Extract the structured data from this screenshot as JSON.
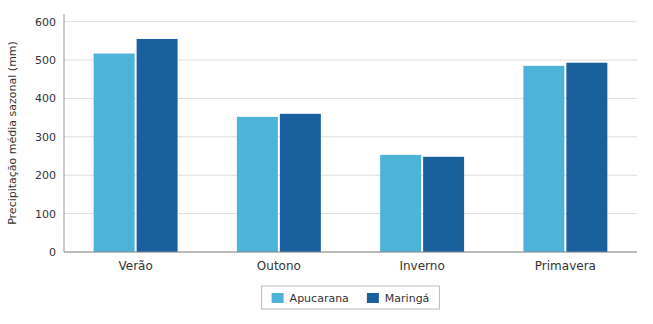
{
  "chart_data": {
    "type": "bar",
    "categories": [
      "Verão",
      "Outono",
      "Inverno",
      "Primavera"
    ],
    "series": [
      {
        "name": "Apucarana",
        "color": "#4db3d9",
        "values": [
          517,
          352,
          253,
          485
        ]
      },
      {
        "name": "Maringá",
        "color": "#1a5f9e",
        "values": [
          555,
          360,
          248,
          493
        ]
      }
    ],
    "y_label": "Precipitação média sazonal (mm)",
    "ylim": [
      0,
      620
    ],
    "yticks": [
      0,
      100,
      200,
      300,
      400,
      500,
      600
    ],
    "grid": true,
    "legend": "bottom"
  }
}
